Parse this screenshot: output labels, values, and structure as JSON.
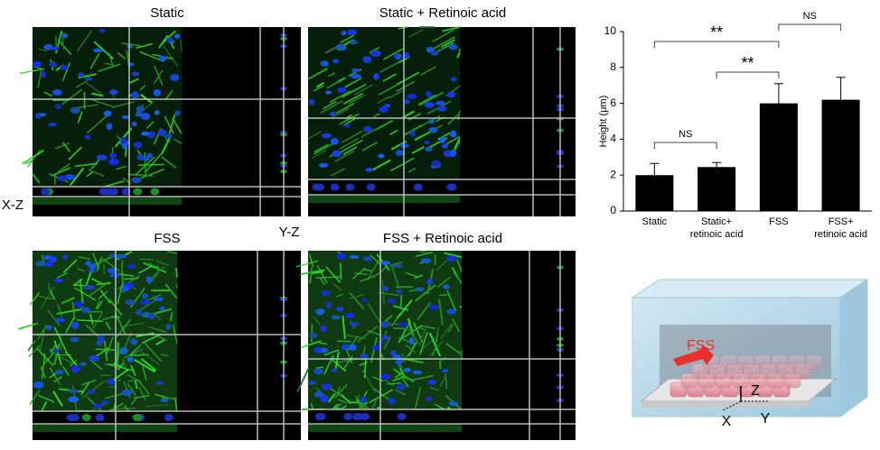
{
  "panels": [
    {
      "title": "Static"
    },
    {
      "title": "Static + Retinoic acid"
    },
    {
      "title": "FSS"
    },
    {
      "title": "FSS + Retinoic acid"
    }
  ],
  "plane_labels": {
    "xz": "X-Z",
    "yz": "Y-Z"
  },
  "chart_data": {
    "type": "bar",
    "y_label": "Height (μm)",
    "categories": [
      "Static",
      "Static+ retinoic acid",
      "FSS",
      "FSS+ retinoic acid"
    ],
    "values": [
      2.0,
      2.45,
      6.0,
      6.2
    ],
    "errors": [
      0.65,
      0.25,
      1.1,
      1.25
    ],
    "color": "#000000",
    "ylim": [
      0,
      10
    ],
    "yticks": [
      0,
      2,
      4,
      6,
      8,
      10
    ],
    "annotations": [
      "**",
      "**",
      "NS",
      "NS"
    ]
  },
  "diagram": {
    "flow": "FSS",
    "z": "Z",
    "x": "X",
    "y": "Y"
  }
}
